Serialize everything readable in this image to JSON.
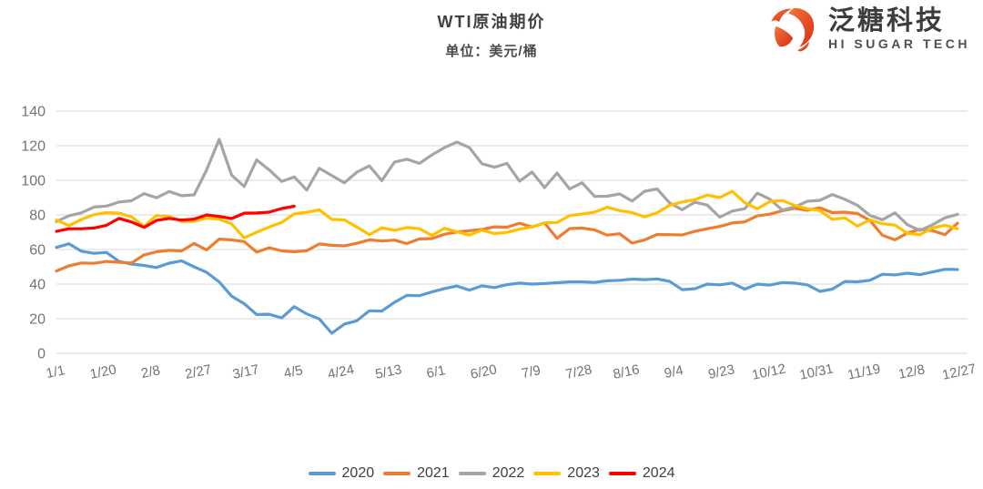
{
  "header": {
    "title": "WTI原油期价",
    "unit_label": "单位：美元/桶"
  },
  "logo": {
    "name": "泛糖科技",
    "subname": "HI SUGAR TECH",
    "icon": "hi-sugar-swirl-icon",
    "icon_color_start": "#F5763B",
    "icon_color_end": "#D62F12",
    "text_color": "#3d3d3d"
  },
  "chart_data": {
    "type": "line",
    "title": "WTI原油期价",
    "subtitle": "单位：美元/桶",
    "xlabel": "",
    "ylabel": "",
    "ylim": [
      0,
      140
    ],
    "yticks": [
      0,
      20,
      40,
      60,
      80,
      100,
      120,
      140
    ],
    "xtick_labels": [
      "1/1",
      "1/20",
      "2/8",
      "2/27",
      "3/17",
      "4/5",
      "4/24",
      "5/13",
      "6/1",
      "6/20",
      "7/9",
      "7/28",
      "8/16",
      "9/4",
      "9/23",
      "10/12",
      "10/31",
      "11/19",
      "12/8",
      "12/27"
    ],
    "xtick_days": [
      1,
      20,
      39,
      58,
      77,
      96,
      115,
      134,
      153,
      172,
      191,
      210,
      229,
      248,
      267,
      286,
      305,
      324,
      343,
      362
    ],
    "x_day_range": [
      1,
      365
    ],
    "grid": "horizontal",
    "gridline_color": "#d9d9d9",
    "tick_label_color": "#737373",
    "legend_position": "bottom",
    "sample_start_day": 1,
    "sample_step_days": 5,
    "series": [
      {
        "name": "2020",
        "color": "#5B9BD5",
        "values": [
          61.2,
          63.3,
          59.0,
          57.8,
          58.3,
          53.1,
          51.6,
          50.8,
          49.6,
          52.1,
          53.5,
          50.0,
          46.8,
          41.3,
          33.0,
          28.7,
          22.4,
          22.6,
          20.5,
          27.0,
          22.8,
          19.9,
          11.6,
          16.9,
          18.8,
          24.6,
          24.4,
          29.4,
          33.5,
          33.3,
          35.5,
          37.4,
          38.9,
          36.5,
          39.0,
          38.0,
          39.7,
          40.6,
          40.0,
          40.3,
          40.8,
          41.3,
          41.3,
          41.0,
          41.9,
          42.2,
          42.9,
          42.6,
          43.0,
          41.5,
          36.8,
          37.3,
          40.0,
          39.6,
          40.6,
          37.1,
          40.0,
          39.4,
          40.9,
          40.6,
          39.6,
          35.8,
          37.1,
          41.5,
          41.3,
          42.2,
          45.7,
          45.3,
          46.3,
          45.5,
          47.0,
          48.6,
          48.4
        ]
      },
      {
        "name": "2021",
        "color": "#ED7D31",
        "values": [
          47.6,
          50.6,
          52.2,
          52.0,
          53.1,
          52.6,
          52.2,
          56.9,
          58.7,
          59.5,
          59.2,
          63.5,
          59.8,
          66.0,
          65.6,
          64.6,
          58.5,
          61.0,
          59.2,
          58.7,
          59.3,
          63.2,
          62.4,
          62.1,
          63.6,
          65.6,
          64.9,
          65.4,
          63.4,
          66.1,
          66.3,
          68.8,
          70.1,
          70.9,
          71.6,
          73.1,
          72.9,
          75.2,
          73.0,
          75.3,
          66.4,
          72.1,
          72.4,
          71.3,
          68.3,
          69.1,
          63.7,
          65.6,
          68.7,
          68.6,
          68.4,
          70.5,
          72.0,
          73.3,
          75.3,
          76.0,
          79.4,
          80.4,
          82.4,
          83.8,
          82.7,
          84.1,
          81.3,
          81.6,
          80.8,
          76.8,
          68.2,
          65.6,
          69.5,
          71.7,
          70.9,
          68.6,
          75.2
        ]
      },
      {
        "name": "2022",
        "color": "#A5A5A5",
        "values": [
          76.1,
          79.5,
          81.2,
          84.5,
          85.1,
          87.4,
          88.2,
          92.3,
          89.9,
          93.5,
          91.1,
          91.6,
          106.0,
          123.7,
          103.0,
          96.4,
          111.8,
          106.0,
          99.3,
          102.0,
          94.3,
          107.0,
          102.8,
          98.5,
          104.7,
          108.3,
          99.8,
          110.5,
          112.2,
          109.8,
          114.7,
          118.9,
          122.1,
          118.9,
          109.6,
          107.6,
          109.8,
          99.5,
          104.8,
          95.8,
          104.2,
          95.0,
          98.6,
          90.7,
          90.8,
          92.1,
          88.0,
          93.7,
          95.0,
          86.9,
          83.0,
          87.3,
          85.7,
          78.7,
          82.2,
          83.6,
          92.6,
          89.1,
          82.8,
          84.6,
          87.9,
          88.4,
          91.8,
          89.0,
          85.6,
          79.7,
          77.2,
          81.2,
          74.3,
          71.0,
          74.3,
          78.3,
          80.3
        ]
      },
      {
        "name": "2023",
        "color": "#FFC000",
        "values": [
          77.0,
          73.8,
          77.4,
          80.1,
          81.3,
          81.0,
          78.9,
          73.4,
          79.7,
          79.1,
          76.2,
          76.3,
          78.2,
          77.6,
          74.8,
          66.7,
          70.0,
          73.0,
          75.7,
          80.6,
          81.5,
          83.0,
          77.4,
          77.1,
          73.0,
          68.6,
          72.6,
          71.1,
          72.7,
          72.0,
          68.1,
          72.2,
          70.2,
          68.3,
          71.2,
          69.2,
          69.9,
          71.8,
          73.0,
          75.4,
          75.6,
          79.6,
          80.6,
          81.6,
          84.4,
          82.5,
          81.3,
          78.9,
          81.2,
          85.6,
          87.5,
          88.8,
          91.5,
          90.0,
          93.7,
          87.0,
          83.5,
          87.7,
          88.3,
          85.5,
          83.5,
          82.5,
          77.4,
          78.3,
          73.5,
          77.1,
          74.9,
          74.1,
          69.3,
          68.6,
          72.5,
          74.0,
          72.0
        ]
      },
      {
        "name": "2024",
        "color": "#FF0000",
        "values": [
          70.5,
          72.0,
          72.0,
          72.4,
          74.0,
          78.0,
          75.9,
          72.8,
          76.8,
          78.0,
          77.0,
          77.6,
          80.0,
          79.1,
          77.9,
          81.0,
          81.1,
          81.6,
          83.7,
          85.0
        ]
      }
    ]
  },
  "legend": {
    "items": [
      {
        "label": "2020",
        "color": "#5B9BD5"
      },
      {
        "label": "2021",
        "color": "#ED7D31"
      },
      {
        "label": "2022",
        "color": "#A5A5A5"
      },
      {
        "label": "2023",
        "color": "#FFC000"
      },
      {
        "label": "2024",
        "color": "#FF0000"
      }
    ]
  }
}
